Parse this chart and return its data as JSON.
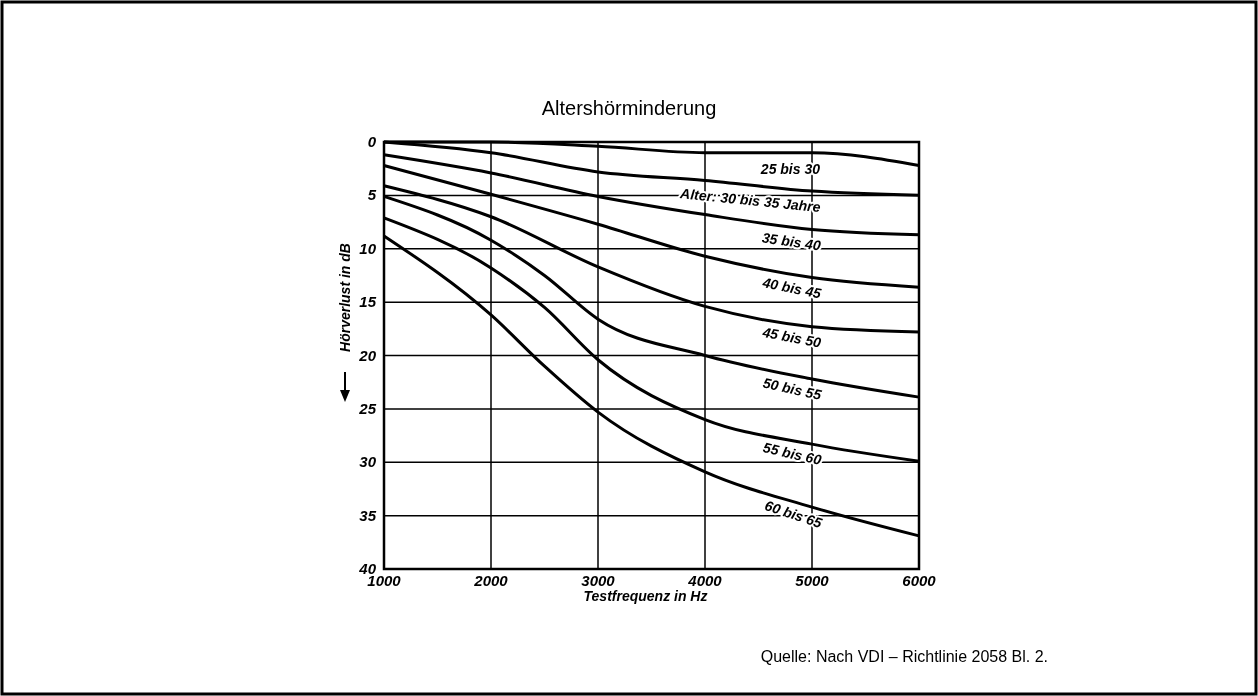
{
  "chart_data": {
    "type": "line",
    "title": "Altershörminderung",
    "xlabel": "Testfrequenz in Hz",
    "ylabel": "Hörverlust in dB",
    "xlim": [
      1000,
      6000
    ],
    "xticks": [
      1000,
      2000,
      3000,
      4000,
      5000,
      6000
    ],
    "ylim": [
      40,
      0
    ],
    "yticks": [
      0,
      5,
      10,
      15,
      20,
      25,
      30,
      35,
      40
    ],
    "grid": true,
    "marker": "none",
    "line_style": "solid",
    "annotations": [
      "Quelle: Nach VDI – Richtlinie 2058 Bl. 2."
    ],
    "series": [
      {
        "name": "25 bis 30",
        "color": "#000000",
        "x": [
          1000,
          2000,
          3000,
          4000,
          5000,
          6000
        ],
        "values": [
          0,
          0,
          0.4,
          1,
          1,
          2.2
        ]
      },
      {
        "name": "Alter: 30 bis 35 Jahre",
        "color": "#000000",
        "x": [
          1000,
          2000,
          3000,
          4000,
          5000,
          6000
        ],
        "values": [
          0,
          1,
          2.8,
          3.6,
          4.6,
          5
        ]
      },
      {
        "name": "35 bis 40",
        "color": "#000000",
        "x": [
          1000,
          2000,
          3000,
          4000,
          5000,
          6000
        ],
        "values": [
          1.2,
          2.9,
          5.1,
          6.8,
          8.2,
          8.7
        ]
      },
      {
        "name": "40 bis 45",
        "color": "#000000",
        "x": [
          1000,
          2000,
          3000,
          4000,
          5000,
          6000
        ],
        "values": [
          2.2,
          4.9,
          7.7,
          10.7,
          12.7,
          13.6
        ]
      },
      {
        "name": "45 bis 50",
        "color": "#000000",
        "x": [
          1000,
          2000,
          3000,
          4000,
          5000,
          6000
        ],
        "values": [
          4.1,
          7,
          11.7,
          15.4,
          17.3,
          17.8
        ]
      },
      {
        "name": "50 bis 55",
        "color": "#000000",
        "x": [
          1000,
          2000,
          2500,
          3000,
          4000,
          5000,
          6000
        ],
        "values": [
          5.1,
          9.2,
          12.5,
          16.6,
          20,
          22.2,
          23.9
        ]
      },
      {
        "name": "55 bis 60",
        "color": "#000000",
        "x": [
          1000,
          2000,
          2500,
          3000,
          4000,
          5000,
          6000
        ],
        "values": [
          7.1,
          11.8,
          15.5,
          20.4,
          26,
          28.3,
          29.9
        ]
      },
      {
        "name": "60 bis 65",
        "color": "#000000",
        "x": [
          1000,
          2000,
          2500,
          3000,
          4000,
          5000,
          6000
        ],
        "values": [
          8.8,
          16.2,
          21,
          25.3,
          30.9,
          34.2,
          36.9
        ]
      }
    ]
  }
}
